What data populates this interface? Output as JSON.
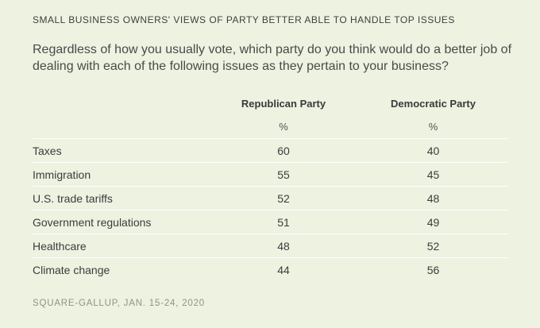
{
  "title": "SMALL BUSINESS OWNERS' VIEWS OF PARTY BETTER ABLE TO HANDLE TOP ISSUES",
  "question": "Regardless of how you usually vote, which party do you think would do a better job of dealing with each of the following issues as they pertain to your business?",
  "table": {
    "headers": [
      "",
      "Republican Party",
      "Democratic Party"
    ],
    "units": [
      "",
      "%",
      "%"
    ],
    "rows": [
      {
        "issue": "Taxes",
        "republican": "60",
        "democratic": "40"
      },
      {
        "issue": "Immigration",
        "republican": "55",
        "democratic": "45"
      },
      {
        "issue": "U.S. trade tariffs",
        "republican": "52",
        "democratic": "48"
      },
      {
        "issue": "Government regulations",
        "republican": "51",
        "democratic": "49"
      },
      {
        "issue": "Healthcare",
        "republican": "48",
        "democratic": "52"
      },
      {
        "issue": "Climate change",
        "republican": "44",
        "democratic": "56"
      }
    ]
  },
  "source": "SQUARE-GALLUP, JAN. 15-24, 2020",
  "colors": {
    "background": "#edf2e1",
    "row_divider": "#ffffff",
    "source_text": "#8f9584"
  }
}
